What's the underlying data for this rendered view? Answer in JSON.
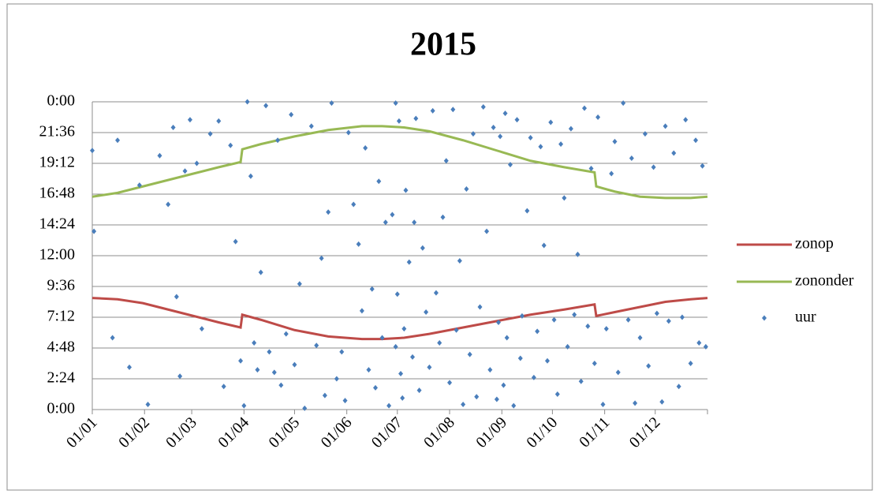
{
  "chart_data": {
    "type": "scatter",
    "title": "2015",
    "xlim": [
      0,
      365
    ],
    "xticks": [
      {
        "value": 0,
        "label": "01/01"
      },
      {
        "value": 31,
        "label": "01/02"
      },
      {
        "value": 59,
        "label": "01/03"
      },
      {
        "value": 90,
        "label": "01/04"
      },
      {
        "value": 120,
        "label": "01/05"
      },
      {
        "value": 151,
        "label": "01/06"
      },
      {
        "value": 181,
        "label": "01/07"
      },
      {
        "value": 212,
        "label": "01/08"
      },
      {
        "value": 243,
        "label": "01/09"
      },
      {
        "value": 273,
        "label": "01/10"
      },
      {
        "value": 304,
        "label": "01/11"
      },
      {
        "value": 334,
        "label": "01/12"
      }
    ],
    "ylim": [
      0,
      24
    ],
    "yticks": [
      {
        "value": 0,
        "label": "0:00"
      },
      {
        "value": 2.4,
        "label": "2:24"
      },
      {
        "value": 4.8,
        "label": "4:48"
      },
      {
        "value": 7.2,
        "label": "7:12"
      },
      {
        "value": 9.6,
        "label": "9:36"
      },
      {
        "value": 12,
        "label": "12:00"
      },
      {
        "value": 14.4,
        "label": "14:24"
      },
      {
        "value": 16.8,
        "label": "16:48"
      },
      {
        "value": 19.2,
        "label": "19:12"
      },
      {
        "value": 21.6,
        "label": "21:36"
      },
      {
        "value": 24,
        "label": "0:00"
      }
    ],
    "grid": true,
    "legend": "right",
    "series": [
      {
        "name": "zonop",
        "type": "line",
        "color": "#be4b48",
        "x": [
          0,
          15,
          30,
          45,
          60,
          75,
          88,
          89,
          100,
          120,
          140,
          160,
          172,
          185,
          200,
          220,
          240,
          260,
          280,
          298,
          299,
          310,
          325,
          340,
          355,
          365
        ],
        "values": [
          8.7,
          8.6,
          8.3,
          7.8,
          7.3,
          6.8,
          6.4,
          7.4,
          7.0,
          6.2,
          5.7,
          5.5,
          5.5,
          5.6,
          5.9,
          6.4,
          6.9,
          7.4,
          7.8,
          8.2,
          7.3,
          7.6,
          8.0,
          8.4,
          8.6,
          8.7
        ]
      },
      {
        "name": "zononder",
        "type": "line",
        "color": "#98b954",
        "x": [
          0,
          15,
          30,
          45,
          60,
          75,
          88,
          89,
          100,
          120,
          140,
          160,
          172,
          185,
          200,
          220,
          240,
          260,
          280,
          298,
          299,
          310,
          325,
          340,
          355,
          365
        ],
        "values": [
          16.6,
          16.9,
          17.4,
          17.9,
          18.4,
          18.9,
          19.3,
          20.3,
          20.7,
          21.3,
          21.8,
          22.1,
          22.1,
          22.0,
          21.7,
          21.0,
          20.2,
          19.4,
          18.9,
          18.5,
          17.4,
          17.0,
          16.6,
          16.5,
          16.5,
          16.6
        ]
      },
      {
        "name": "uur",
        "type": "scatter",
        "color": "#4a7ebb",
        "x": [
          0,
          1,
          12,
          15,
          22,
          28,
          33,
          40,
          45,
          48,
          50,
          52,
          55,
          58,
          62,
          65,
          70,
          75,
          78,
          82,
          85,
          88,
          90,
          92,
          94,
          96,
          98,
          100,
          103,
          105,
          108,
          110,
          112,
          115,
          118,
          120,
          123,
          126,
          130,
          133,
          136,
          138,
          140,
          142,
          145,
          148,
          150,
          152,
          155,
          158,
          160,
          162,
          164,
          166,
          168,
          170,
          172,
          174,
          176,
          178,
          180,
          180,
          181,
          182,
          183,
          184,
          185,
          186,
          188,
          190,
          191,
          192,
          194,
          196,
          198,
          200,
          202,
          204,
          206,
          208,
          210,
          212,
          214,
          216,
          218,
          220,
          222,
          224,
          226,
          228,
          230,
          232,
          234,
          236,
          238,
          240,
          241,
          242,
          244,
          245,
          246,
          248,
          250,
          252,
          254,
          255,
          258,
          260,
          262,
          264,
          266,
          268,
          270,
          272,
          274,
          276,
          278,
          280,
          282,
          284,
          286,
          288,
          290,
          292,
          294,
          296,
          298,
          300,
          303,
          305,
          308,
          310,
          312,
          315,
          318,
          320,
          322,
          325,
          328,
          330,
          333,
          335,
          338,
          340,
          342,
          345,
          348,
          350,
          352,
          355,
          358,
          360,
          362,
          364
        ],
        "values": [
          20.2,
          13.9,
          5.6,
          21.0,
          3.3,
          17.5,
          0.4,
          19.8,
          16.0,
          22.0,
          8.8,
          2.6,
          18.6,
          22.6,
          19.2,
          6.3,
          21.5,
          22.5,
          1.8,
          20.6,
          13.1,
          3.8,
          0.3,
          24.0,
          18.2,
          5.2,
          3.1,
          10.7,
          23.7,
          4.5,
          2.9,
          21.0,
          1.9,
          5.9,
          23.0,
          3.5,
          9.8,
          0.1,
          22.1,
          5.0,
          11.8,
          1.1,
          15.4,
          23.9,
          2.4,
          4.5,
          0.7,
          21.6,
          16.0,
          12.9,
          7.7,
          20.4,
          3.1,
          9.4,
          1.7,
          17.8,
          5.6,
          14.6,
          0.3,
          15.2,
          23.9,
          4.9,
          9.0,
          22.5,
          2.8,
          0.9,
          6.3,
          17.1,
          11.5,
          4.1,
          14.6,
          22.7,
          1.5,
          12.6,
          7.6,
          3.3,
          23.3,
          9.1,
          5.2,
          15.0,
          19.4,
          2.1,
          23.4,
          6.2,
          11.6,
          0.4,
          17.2,
          4.3,
          21.5,
          1.0,
          8.0,
          23.6,
          13.9,
          3.1,
          22.0,
          0.8,
          6.8,
          21.3,
          1.9,
          23.1,
          5.6,
          19.1,
          0.3,
          22.6,
          4.0,
          7.3,
          15.5,
          21.2,
          2.5,
          6.1,
          20.5,
          12.8,
          3.8,
          22.4,
          7.0,
          1.2,
          20.7,
          16.5,
          4.9,
          21.9,
          7.4,
          12.1,
          2.2,
          23.5,
          6.5,
          18.8,
          3.6,
          22.8,
          0.4,
          6.3,
          18.4,
          20.9,
          2.9,
          23.9,
          7.0,
          19.6,
          0.5,
          5.6,
          21.5,
          3.4,
          18.9,
          7.5,
          0.6,
          22.1,
          6.9,
          20.0,
          1.8,
          7.2,
          22.6,
          3.6,
          21.0,
          5.2,
          19.0,
          4.9
        ]
      }
    ]
  }
}
